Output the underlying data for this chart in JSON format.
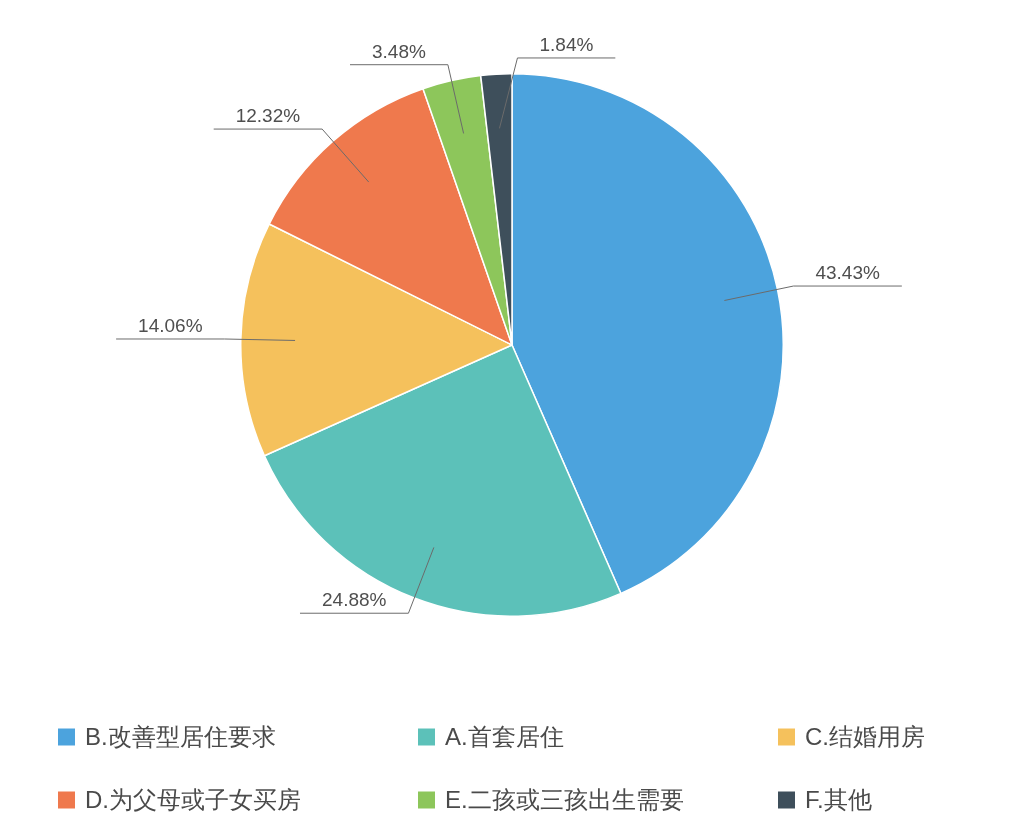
{
  "chart_data": {
    "type": "pie",
    "categories": [
      "B.改善型居住要求",
      "A.首套居住",
      "C.结婚用房",
      "D.为父母或子女买房",
      "E.二孩或三孩出生需要",
      "F.其他"
    ],
    "values": [
      43.43,
      24.88,
      14.06,
      12.32,
      3.48,
      1.84
    ],
    "colors": [
      "#4ca3dd",
      "#5cc1b9",
      "#f5c15c",
      "#ef794d",
      "#8dc65b",
      "#3e4f5b"
    ],
    "value_labels": [
      "43.43%",
      "24.88%",
      "14.06%",
      "12.32%",
      "3.48%",
      "1.84%"
    ],
    "legend": "bottom"
  }
}
